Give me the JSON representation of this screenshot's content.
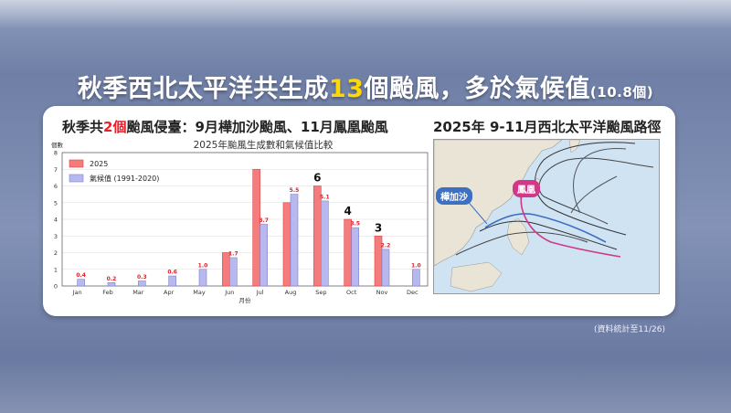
{
  "headline": {
    "part1": "秋季西北太平洋共生成",
    "count": "13",
    "part2": "個颱風，多於氣候值",
    "note": "(10.8個)"
  },
  "left_title": {
    "part1": "秋季共",
    "count": "2個",
    "part2": "颱風侵臺：9月樺加沙颱風、11月鳳凰颱風"
  },
  "right_title": "2025年 9-11月西北太平洋颱風路徑",
  "map_labels": {
    "ragasa": "樺加沙",
    "fungwong": "鳳凰"
  },
  "footnote": "(資料統計至11/26)",
  "colors": {
    "series_2025": "#f47c7c",
    "series_2025_edge": "#d94848",
    "series_clim": "#b7b9ee",
    "series_clim_edge": "#7d7fd0",
    "value_label": "#e0202a",
    "ragasa": "#3d6fc4",
    "fungwong": "#d2378a"
  },
  "chart_data": {
    "type": "bar",
    "title": "2025年颱風生成數和氣候值比較",
    "ylabel": "個數",
    "xlabel": "月份",
    "ylim": [
      0,
      8
    ],
    "yticks": [
      "0",
      "1",
      "2",
      "3",
      "4",
      "5",
      "6",
      "7",
      "8"
    ],
    "categories": [
      "Jan",
      "Feb",
      "Mar",
      "Apr",
      "May",
      "Jun",
      "Jul",
      "Aug",
      "Sep",
      "Oct",
      "Nov",
      "Dec"
    ],
    "legend_position": "top-left",
    "series": [
      {
        "name": "2025",
        "values": [
          0,
          0,
          0,
          0,
          0,
          2,
          7,
          5,
          6,
          4,
          3,
          0
        ]
      },
      {
        "name": "氣候值 (1991-2020)",
        "values": [
          0.4,
          0.2,
          0.3,
          0.6,
          1.0,
          1.7,
          3.7,
          5.5,
          5.1,
          3.5,
          2.2,
          1.0
        ]
      }
    ],
    "value_labels_clim": [
      "0.4",
      "0.2",
      "0.3",
      "0.6",
      "1.0",
      "1.7",
      "3.7",
      "5.5",
      "5.1",
      "3.5",
      "2.2",
      "1.0"
    ],
    "highlight_labels": [
      {
        "month": "Sep",
        "text": "6"
      },
      {
        "month": "Oct",
        "text": "4"
      },
      {
        "month": "Nov",
        "text": "3"
      }
    ]
  }
}
